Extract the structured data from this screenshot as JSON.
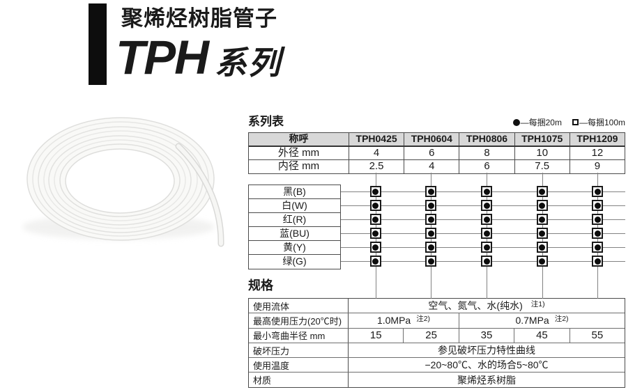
{
  "header": {
    "subtitle": "聚烯烃树脂管子",
    "series_name": "TPH",
    "series_suffix": "系列"
  },
  "series_table": {
    "title": "系列表",
    "legend": [
      {
        "icon": "filled-circle",
        "label": "—每捆20m"
      },
      {
        "icon": "open-square",
        "label": "—每捆100m"
      }
    ],
    "header_label": "称呼",
    "columns": [
      "TPH0425",
      "TPH0604",
      "TPH0806",
      "TPH1075",
      "TPH1209"
    ],
    "spec_rows": [
      {
        "label": "外径 mm",
        "values": [
          "4",
          "6",
          "8",
          "10",
          "12"
        ]
      },
      {
        "label": "内径 mm",
        "values": [
          "2.5",
          "4",
          "6",
          "7.5",
          "9"
        ]
      }
    ],
    "color_rows": [
      "黑(B)",
      "白(W)",
      "红(R)",
      "蓝(BU)",
      "黄(Y)",
      "绿(G)"
    ],
    "availability_matrix": [
      [
        1,
        1,
        1,
        1,
        1
      ],
      [
        1,
        1,
        1,
        1,
        1
      ],
      [
        1,
        1,
        1,
        1,
        1
      ],
      [
        1,
        1,
        1,
        1,
        1
      ],
      [
        1,
        1,
        1,
        1,
        1
      ],
      [
        1,
        1,
        1,
        1,
        1
      ]
    ],
    "marker_meaning": "filled-circle-in-square"
  },
  "specs_table": {
    "title": "规格",
    "rows": [
      {
        "label": "使用流体",
        "value": "空气、氮气、水(纯水)",
        "note": "注1)"
      },
      {
        "label": "最高使用压力(20℃时)",
        "cells": [
          {
            "value": "1.0MPa",
            "note": "注2)",
            "span": 2
          },
          {
            "value": "0.7MPa",
            "note": "注2)",
            "span": 3
          }
        ]
      },
      {
        "label": "最小弯曲半径 mm",
        "values": [
          "15",
          "25",
          "35",
          "45",
          "55"
        ]
      },
      {
        "label": "破坏压力",
        "value": "参见破坏压力特性曲线"
      },
      {
        "label": "使用温度",
        "value": "−20~80℃、水的场合5~80℃"
      },
      {
        "label": "材质",
        "value": "聚烯烃系树脂"
      }
    ]
  },
  "colors": {
    "accent_bar": "#0d0d0d",
    "header_bg": "#d8d8d8",
    "line_dark": "#4a4a4a",
    "line_mid": "#828282",
    "text": "#1a1a1a"
  }
}
